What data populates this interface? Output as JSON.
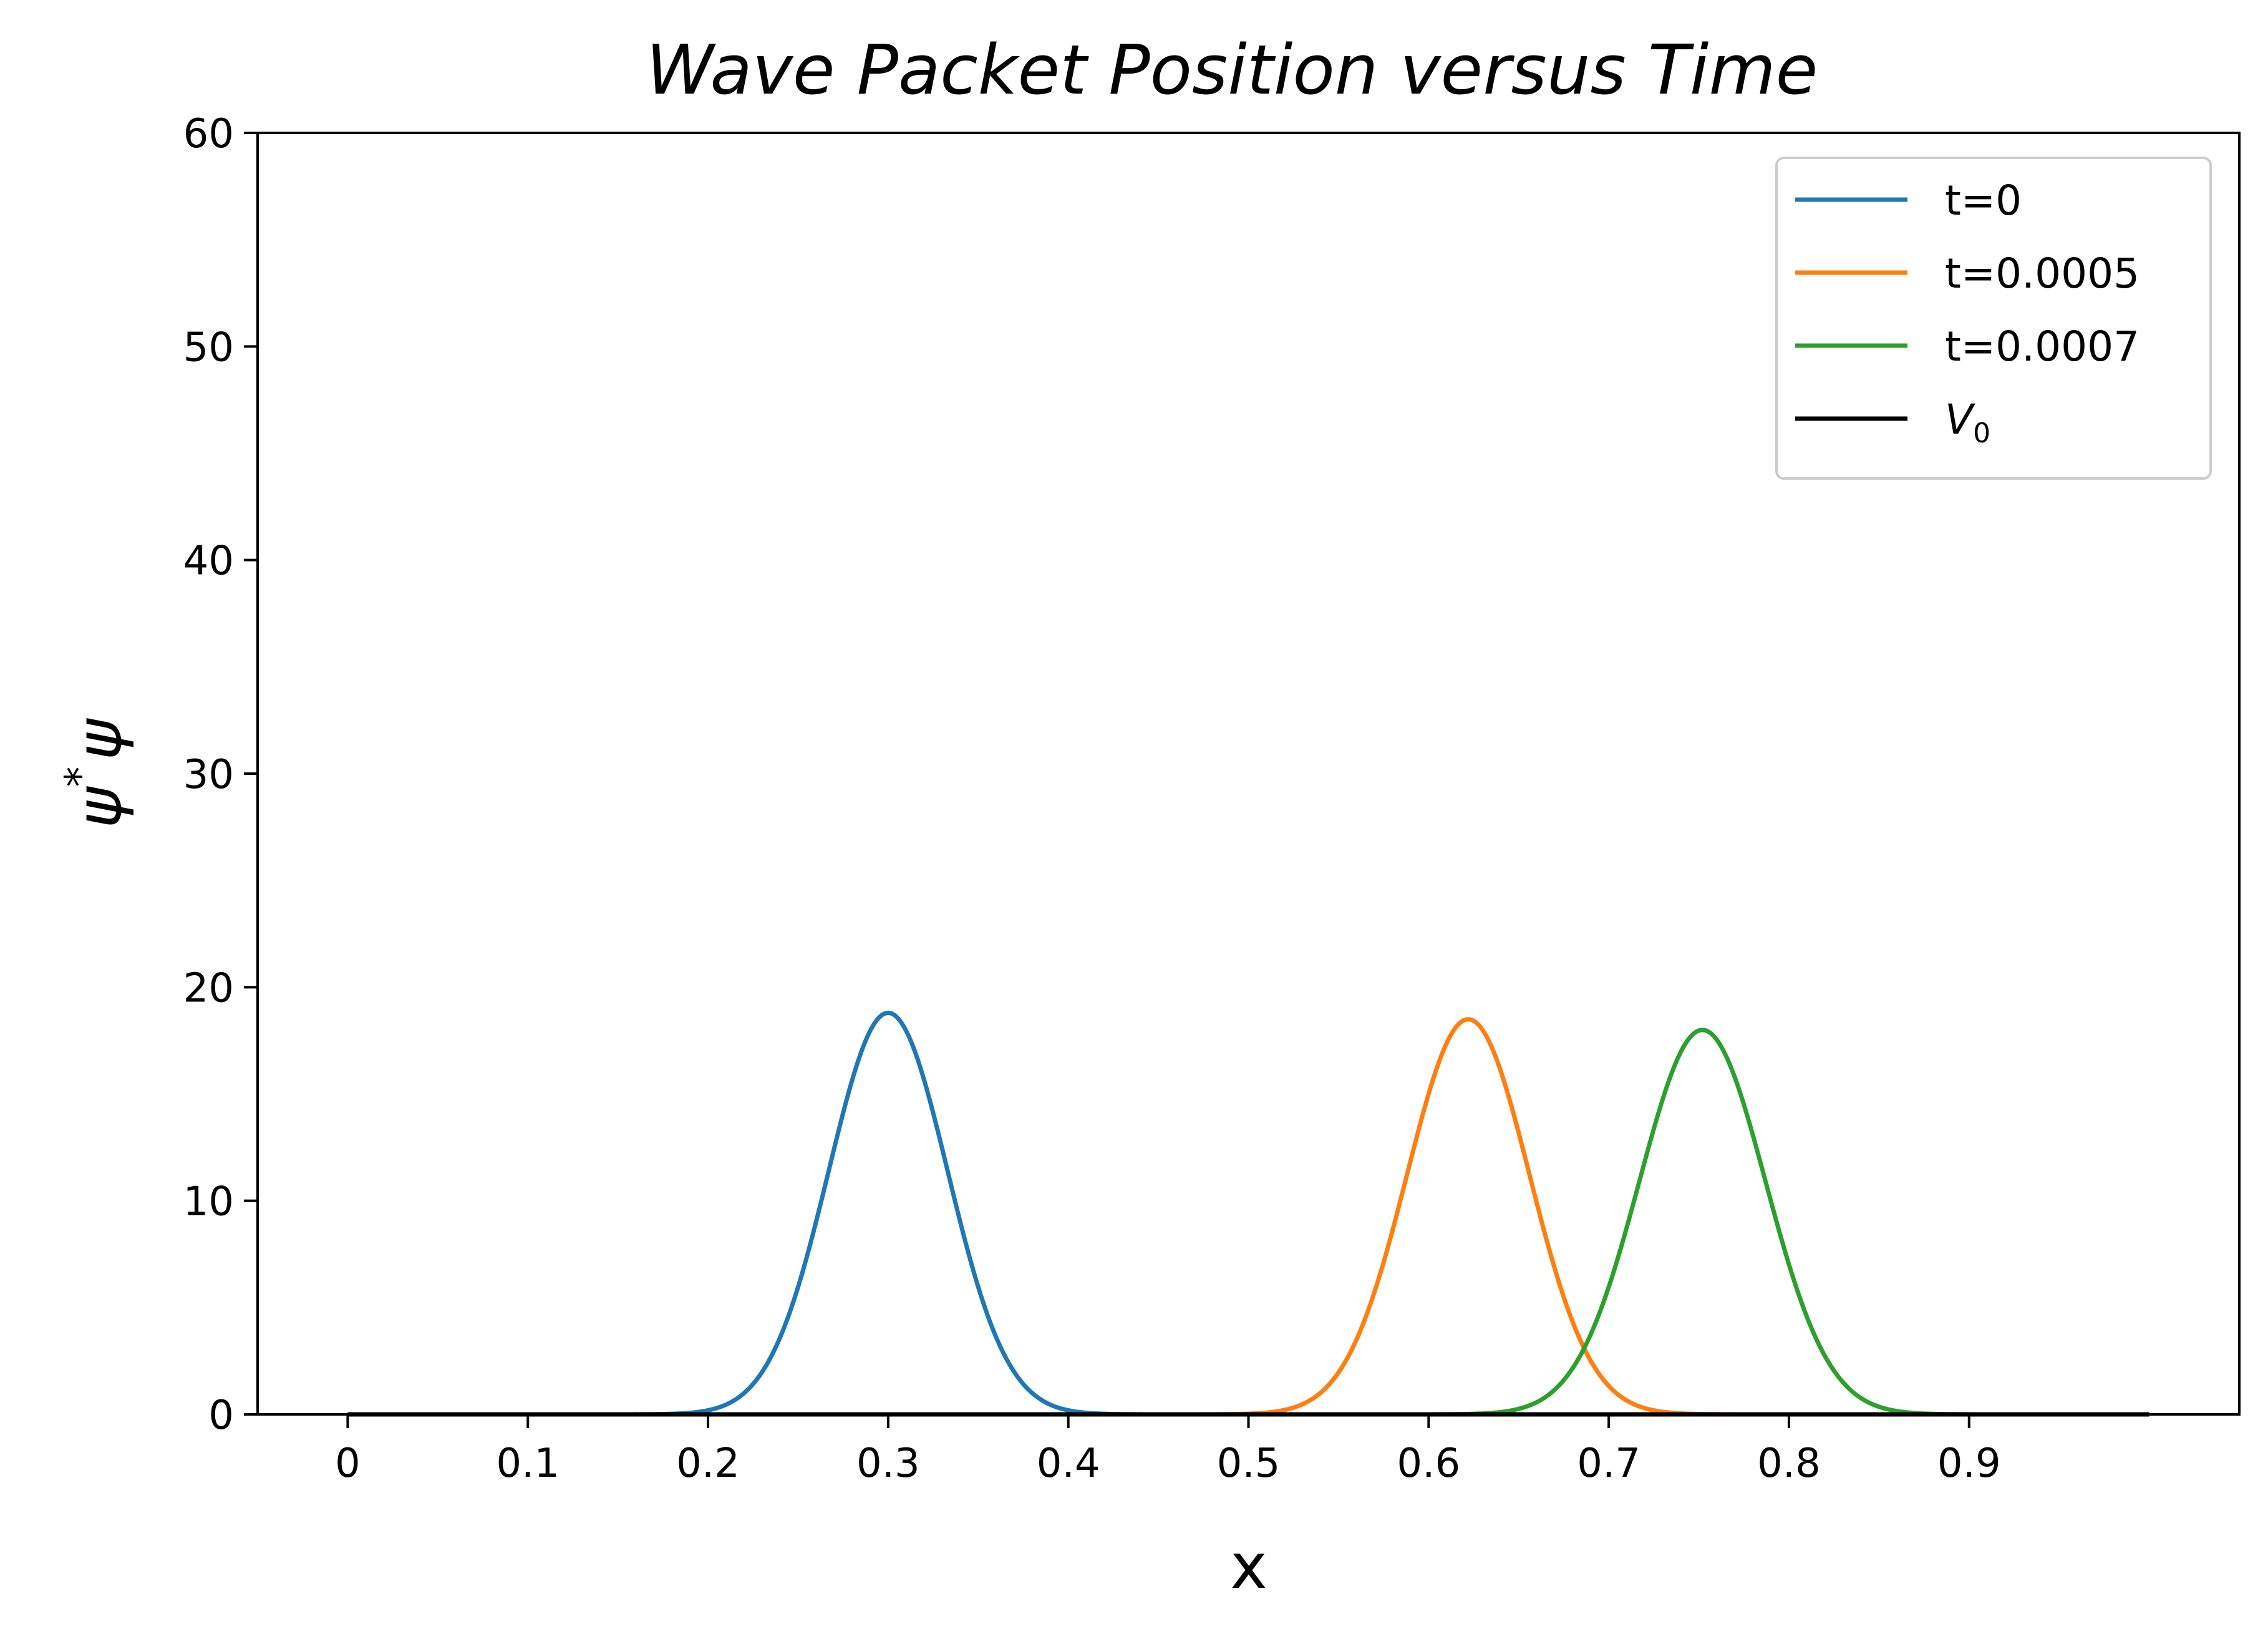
{
  "chart_data": {
    "type": "line",
    "title": "Wave Packet Position versus Time",
    "xlabel": "x",
    "ylabel": "ψ*ψ",
    "ylabel_base": "ψ",
    "ylabel_sup": "*",
    "ylabel_tail": "ψ",
    "xlim": [
      -0.05,
      1.05
    ],
    "ylim": [
      0,
      60
    ],
    "xticks": [
      0,
      0.1,
      0.2,
      0.3,
      0.4,
      0.5,
      0.6,
      0.7,
      0.8,
      0.9
    ],
    "xtick_labels": [
      "0",
      "0.1",
      "0.2",
      "0.3",
      "0.4",
      "0.5",
      "0.6",
      "0.7",
      "0.8",
      "0.9"
    ],
    "yticks": [
      0,
      10,
      20,
      30,
      40,
      50,
      60
    ],
    "ytick_labels": [
      "0",
      "10",
      "20",
      "30",
      "40",
      "50",
      "60"
    ],
    "grid": false,
    "legend_position": "top-right",
    "series": [
      {
        "name": "t=0",
        "color": "#1f77b4",
        "shape": "gaussian",
        "center": 0.3,
        "peak": 18.8,
        "sigma": 0.033,
        "x_range": [
          0,
          1
        ]
      },
      {
        "name": "t=0.0005",
        "color": "#ff7f0e",
        "shape": "gaussian",
        "center": 0.622,
        "peak": 18.5,
        "sigma": 0.034,
        "x_range": [
          0,
          1
        ]
      },
      {
        "name": "t=0.0007",
        "color": "#2ca02c",
        "shape": "gaussian",
        "center": 0.752,
        "peak": 18.0,
        "sigma": 0.035,
        "x_range": [
          0,
          1
        ]
      },
      {
        "name": "V",
        "name_sub": "0",
        "color": "#000000",
        "shape": "constant",
        "value": 0,
        "x_range": [
          0,
          1
        ]
      }
    ]
  }
}
